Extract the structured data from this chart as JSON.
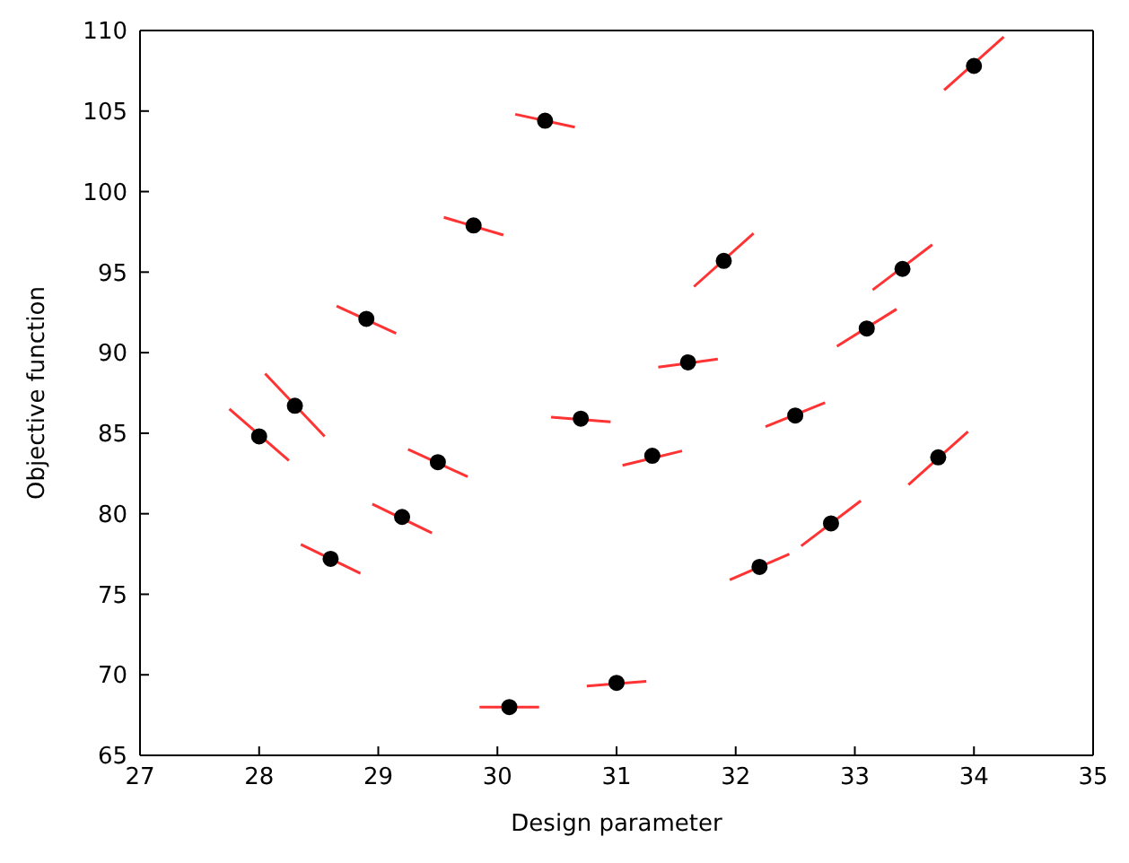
{
  "chart_data": {
    "type": "scatter",
    "xlabel": "Design parameter",
    "ylabel": "Objective function",
    "xlim": [
      27,
      35
    ],
    "xticks": [
      27,
      28,
      29,
      30,
      31,
      32,
      33,
      34,
      35
    ],
    "ylim": [
      65,
      110
    ],
    "yticks": [
      65,
      70,
      75,
      80,
      85,
      90,
      95,
      100,
      105,
      110
    ],
    "marker": "circle",
    "series": [
      {
        "type": "scatter",
        "color": "#000000",
        "x": [
          28.0,
          28.3,
          28.6,
          28.9,
          29.2,
          29.5,
          29.8,
          30.1,
          30.4,
          30.7,
          31.0,
          31.3,
          31.6,
          31.9,
          32.2,
          32.5,
          32.8,
          33.1,
          33.4,
          33.7,
          34.0
        ],
        "values": [
          84.8,
          86.7,
          77.2,
          92.1,
          79.8,
          83.2,
          97.9,
          68.0,
          104.4,
          85.9,
          69.5,
          83.6,
          89.4,
          95.7,
          76.7,
          86.1,
          79.4,
          91.5,
          95.2,
          83.5,
          107.8
        ]
      },
      {
        "type": "line",
        "color": "#ff3333",
        "marker": "none",
        "x": [
          27.75,
          28.25
        ],
        "values": [
          86.5,
          83.3
        ]
      },
      {
        "type": "line",
        "color": "#ff3333",
        "marker": "none",
        "x": [
          28.05,
          28.55
        ],
        "values": [
          88.7,
          84.8
        ]
      },
      {
        "type": "line",
        "color": "#ff3333",
        "marker": "none",
        "x": [
          28.35,
          28.85
        ],
        "values": [
          78.1,
          76.3
        ]
      },
      {
        "type": "line",
        "color": "#ff3333",
        "marker": "none",
        "x": [
          28.65,
          29.15
        ],
        "values": [
          92.9,
          91.2
        ]
      },
      {
        "type": "line",
        "color": "#ff3333",
        "marker": "none",
        "x": [
          28.95,
          29.45
        ],
        "values": [
          80.6,
          78.8
        ]
      },
      {
        "type": "line",
        "color": "#ff3333",
        "marker": "none",
        "x": [
          29.25,
          29.75
        ],
        "values": [
          84.0,
          82.3
        ]
      },
      {
        "type": "line",
        "color": "#ff3333",
        "marker": "none",
        "x": [
          29.55,
          30.05
        ],
        "values": [
          98.4,
          97.3
        ]
      },
      {
        "type": "line",
        "color": "#ff3333",
        "marker": "none",
        "x": [
          29.85,
          30.35
        ],
        "values": [
          68.0,
          68.0
        ]
      },
      {
        "type": "line",
        "color": "#ff3333",
        "marker": "none",
        "x": [
          30.15,
          30.65
        ],
        "values": [
          104.8,
          104.0
        ]
      },
      {
        "type": "line",
        "color": "#ff3333",
        "marker": "none",
        "x": [
          30.45,
          30.95
        ],
        "values": [
          86.0,
          85.7
        ]
      },
      {
        "type": "line",
        "color": "#ff3333",
        "marker": "none",
        "x": [
          30.75,
          31.25
        ],
        "values": [
          69.3,
          69.6
        ]
      },
      {
        "type": "line",
        "color": "#ff3333",
        "marker": "none",
        "x": [
          31.05,
          31.55
        ],
        "values": [
          83.0,
          83.9
        ]
      },
      {
        "type": "line",
        "color": "#ff3333",
        "marker": "none",
        "x": [
          31.35,
          31.85
        ],
        "values": [
          89.1,
          89.6
        ]
      },
      {
        "type": "line",
        "color": "#ff3333",
        "marker": "none",
        "x": [
          31.65,
          32.15
        ],
        "values": [
          94.1,
          97.4
        ]
      },
      {
        "type": "line",
        "color": "#ff3333",
        "marker": "none",
        "x": [
          31.95,
          32.45
        ],
        "values": [
          75.9,
          77.5
        ]
      },
      {
        "type": "line",
        "color": "#ff3333",
        "marker": "none",
        "x": [
          32.25,
          32.75
        ],
        "values": [
          85.4,
          86.9
        ]
      },
      {
        "type": "line",
        "color": "#ff3333",
        "marker": "none",
        "x": [
          32.55,
          33.05
        ],
        "values": [
          78.0,
          80.8
        ]
      },
      {
        "type": "line",
        "color": "#ff3333",
        "marker": "none",
        "x": [
          32.85,
          33.35
        ],
        "values": [
          90.4,
          92.7
        ]
      },
      {
        "type": "line",
        "color": "#ff3333",
        "marker": "none",
        "x": [
          33.15,
          33.65
        ],
        "values": [
          93.9,
          96.7
        ]
      },
      {
        "type": "line",
        "color": "#ff3333",
        "marker": "none",
        "x": [
          33.45,
          33.95
        ],
        "values": [
          81.8,
          85.1
        ]
      },
      {
        "type": "line",
        "color": "#ff3333",
        "marker": "none",
        "x": [
          33.75,
          34.25
        ],
        "values": [
          106.3,
          109.6
        ]
      }
    ]
  }
}
